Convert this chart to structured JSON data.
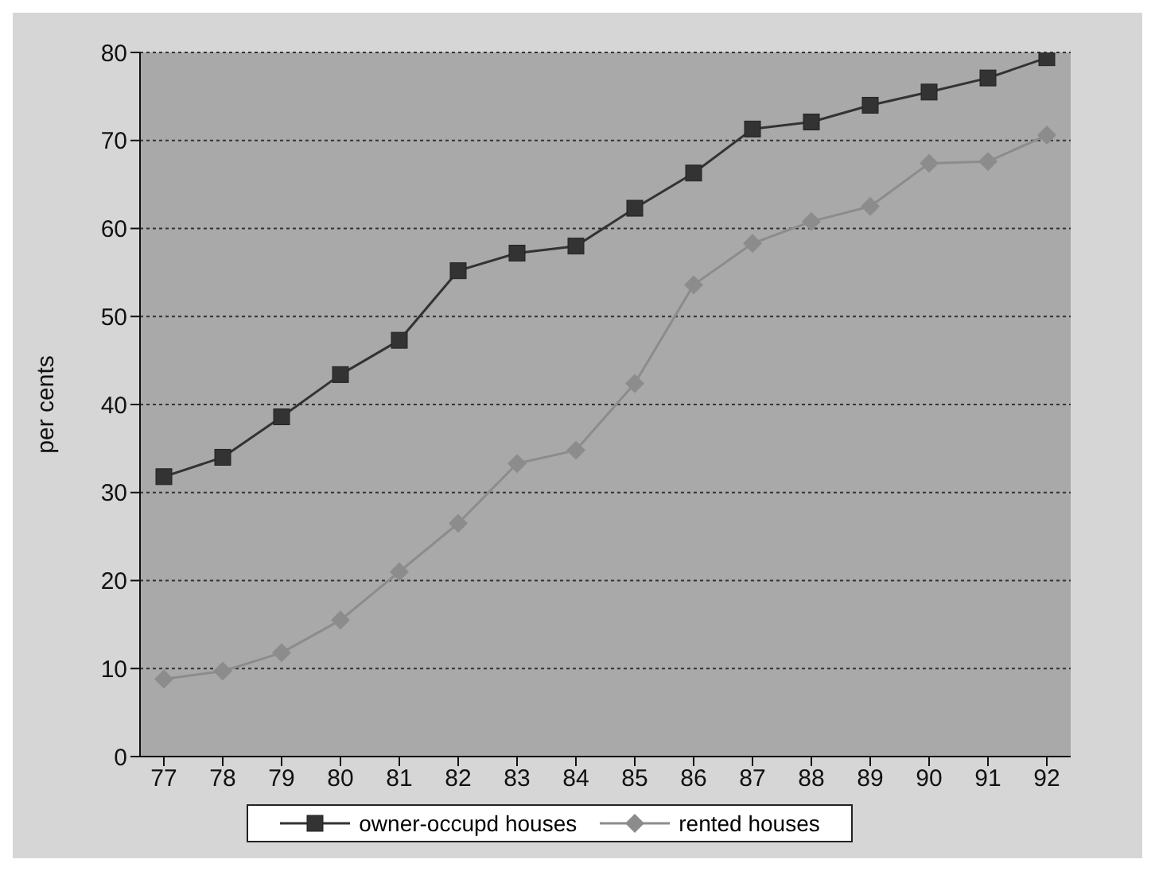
{
  "chart_data": {
    "type": "line",
    "ylabel": "per cents",
    "categories": [
      "77",
      "78",
      "79",
      "80",
      "81",
      "82",
      "83",
      "84",
      "85",
      "86",
      "87",
      "88",
      "89",
      "90",
      "91",
      "92"
    ],
    "series": [
      {
        "name": "owner-occupd houses",
        "color": "#333333",
        "marker": "square",
        "values": [
          31.8,
          34,
          38.6,
          43.4,
          47.3,
          55.2,
          57.2,
          58,
          62.3,
          66.3,
          71.3,
          72.1,
          74,
          75.5,
          77.1,
          79.4
        ]
      },
      {
        "name": "rented houses",
        "color": "#8c8c8c",
        "marker": "diamond",
        "values": [
          8.8,
          9.7,
          11.8,
          15.5,
          21,
          26.5,
          33.3,
          34.8,
          42.4,
          53.6,
          58.3,
          60.8,
          62.5,
          67.4,
          67.6,
          70.6
        ]
      }
    ],
    "ylim": [
      0,
      80
    ],
    "yticks": [
      0,
      10,
      20,
      30,
      40,
      50,
      60,
      70,
      80
    ],
    "grid": "y",
    "legend": "bottom",
    "line_style": "solid"
  }
}
